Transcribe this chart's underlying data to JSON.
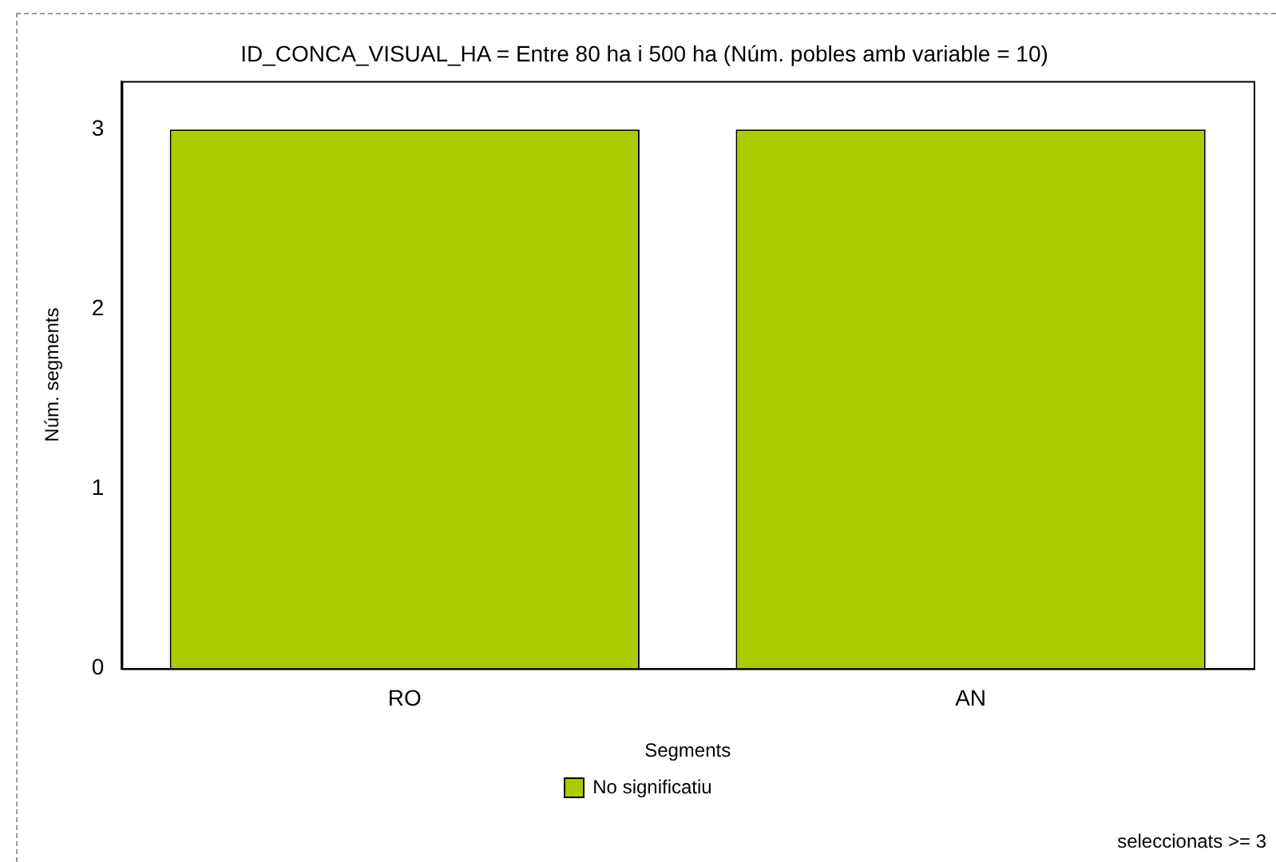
{
  "chart_data": {
    "type": "bar",
    "title": "ID_CONCA_VISUAL_HA = Entre 80 ha i 500 ha (Núm. pobles amb variable = 10)",
    "xlabel": "Segments",
    "ylabel": "Núm. segments",
    "categories": [
      "RO",
      "AN"
    ],
    "series": [
      {
        "name": "No significatiu",
        "color": "#aacc00",
        "values": [
          3,
          3
        ]
      }
    ],
    "ylim": [
      0,
      3.27
    ],
    "yticks": [
      0,
      1,
      2,
      3
    ],
    "grid": false,
    "legend": "bottom",
    "annotations": [
      "seleccionats >= 3"
    ]
  }
}
